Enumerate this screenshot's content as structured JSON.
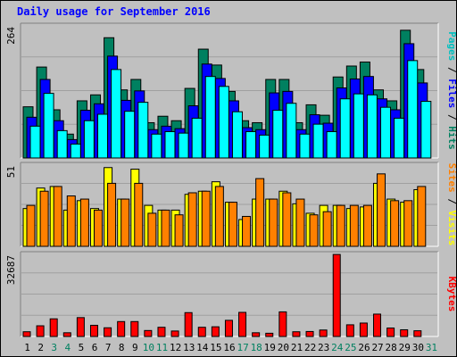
{
  "chart_data": {
    "type": "bar",
    "title": "Daily usage for September 2016",
    "days": [
      "1",
      "2",
      "3",
      "4",
      "5",
      "6",
      "7",
      "8",
      "9",
      "10",
      "11",
      "12",
      "13",
      "14",
      "15",
      "16",
      "17",
      "18",
      "19",
      "20",
      "21",
      "22",
      "23",
      "24",
      "25",
      "26",
      "27",
      "28",
      "29",
      "30",
      "31"
    ],
    "weekend_days": [
      "3",
      "4",
      "10",
      "11",
      "17",
      "18",
      "24",
      "25",
      "31"
    ],
    "grid": true,
    "panels": [
      {
        "id": "pages-files-hits",
        "max_label": "264",
        "axis_label_parts": [
          "Pages",
          "Files",
          "Hits"
        ],
        "axis_label_colors": [
          "#00c0c0",
          "#0000ff",
          "#008060"
        ],
        "ylim": [
          0,
          264
        ],
        "series": [
          {
            "name": "Hits",
            "color": "#008060",
            "values": [
              103,
              183,
              97,
              48,
              115,
              127,
              242,
              137,
              158,
              71,
              84,
              75,
              140,
              219,
              187,
              134,
              75,
              71,
              158,
              158,
              71,
              107,
              86,
              163,
              185,
              193,
              137,
              115,
              257,
              178,
              0
            ]
          },
          {
            "name": "Files",
            "color": "#0000ff",
            "values": [
              82,
              158,
              75,
              37,
              96,
              109,
              205,
              116,
              135,
              57,
              64,
              59,
              105,
              189,
              160,
              115,
              61,
              57,
              131,
              134,
              57,
              87,
              70,
              141,
              159,
              164,
              119,
              97,
              230,
              151,
              0
            ]
          },
          {
            "name": "Pages",
            "color": "#00ffff",
            "values": [
              64,
              130,
              55,
              28,
              75,
              88,
              178,
              94,
              112,
              48,
              53,
              50,
              80,
              164,
              144,
              93,
              53,
              46,
              96,
              110,
              48,
              68,
              53,
              119,
              129,
              127,
              102,
              80,
              196,
              114,
              0
            ]
          }
        ]
      },
      {
        "id": "visits-sites",
        "max_label": "51",
        "axis_label_parts": [
          "Sites",
          "Visits"
        ],
        "axis_label_colors": [
          "#ff8000",
          "#ffff00"
        ],
        "ylim": [
          0,
          51
        ],
        "series": [
          {
            "name": "Visits",
            "color": "#ffff00",
            "values": [
              24,
              37,
              38,
              23,
              29,
              24,
              50,
              30,
              49,
              26,
              23,
              23,
              33,
              35,
              41,
              28,
              17,
              30,
              30,
              35,
              27,
              21,
              26,
              26,
              24,
              25,
              40,
              30,
              28,
              36,
              0
            ]
          },
          {
            "name": "Sites",
            "color": "#ff8000",
            "values": [
              26,
              35,
              38,
              32,
              30,
              23,
              40,
              30,
              40,
              21,
              23,
              20,
              34,
              35,
              38,
              28,
              19,
              43,
              30,
              34,
              30,
              20,
              22,
              26,
              26,
              26,
              46,
              29,
              29,
              38,
              0
            ]
          }
        ]
      },
      {
        "id": "kbytes",
        "max_label": "32687",
        "axis_label_parts": [
          "KBytes"
        ],
        "axis_label_colors": [
          "#ff0000"
        ],
        "ylim": [
          0,
          32687
        ],
        "series": [
          {
            "name": "KBytes",
            "color": "#ff0000",
            "values": [
              1900,
              4300,
              7100,
              1500,
              7600,
              4500,
              3500,
              6000,
              6000,
              2400,
              3700,
              2200,
              9600,
              3700,
              3900,
              6500,
              9700,
              1500,
              1300,
              9900,
              1900,
              2000,
              2600,
              33000,
              4700,
              5400,
              9000,
              3400,
              2700,
              2300,
              0
            ]
          }
        ]
      }
    ]
  }
}
